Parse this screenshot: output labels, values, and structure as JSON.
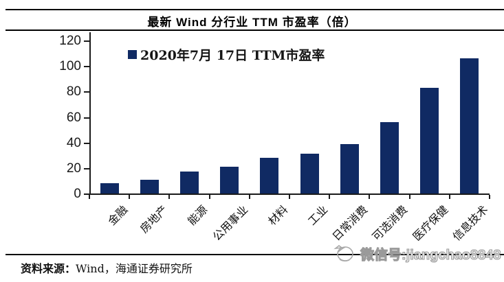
{
  "title": "最新 Wind 分行业 TTM 市盈率（倍）",
  "legend": "2020年7月 17日 TTM市盈率",
  "source": {
    "label": "资料来源：",
    "text": "Wind，海通证券研究所"
  },
  "watermark": {
    "icon": "sketch-circle-icon",
    "text": "微信号:jiangchao8848"
  },
  "colors": {
    "bar": "#102a63",
    "axis": "#1a1a1a",
    "watermark": "#9a9a9a"
  },
  "chart_data": {
    "type": "bar",
    "title": "最新 Wind 分行业 TTM 市盈率（倍）",
    "legend_entries": [
      "2020年7月 17日 TTM市盈率"
    ],
    "legend_position": "top-left-inside",
    "categories": [
      "金融",
      "房地产",
      "能源",
      "公用事业",
      "材料",
      "工业",
      "日常消费",
      "可选消费",
      "医疗保健",
      "信息技术"
    ],
    "values": [
      8,
      11,
      17,
      21,
      28,
      31,
      39,
      56,
      83,
      106
    ],
    "xlabel": "",
    "ylabel": "",
    "ylim": [
      0,
      120
    ],
    "yticks": [
      0,
      20,
      40,
      60,
      80,
      100,
      120
    ],
    "grid": false,
    "bar_color": "#102a63"
  }
}
